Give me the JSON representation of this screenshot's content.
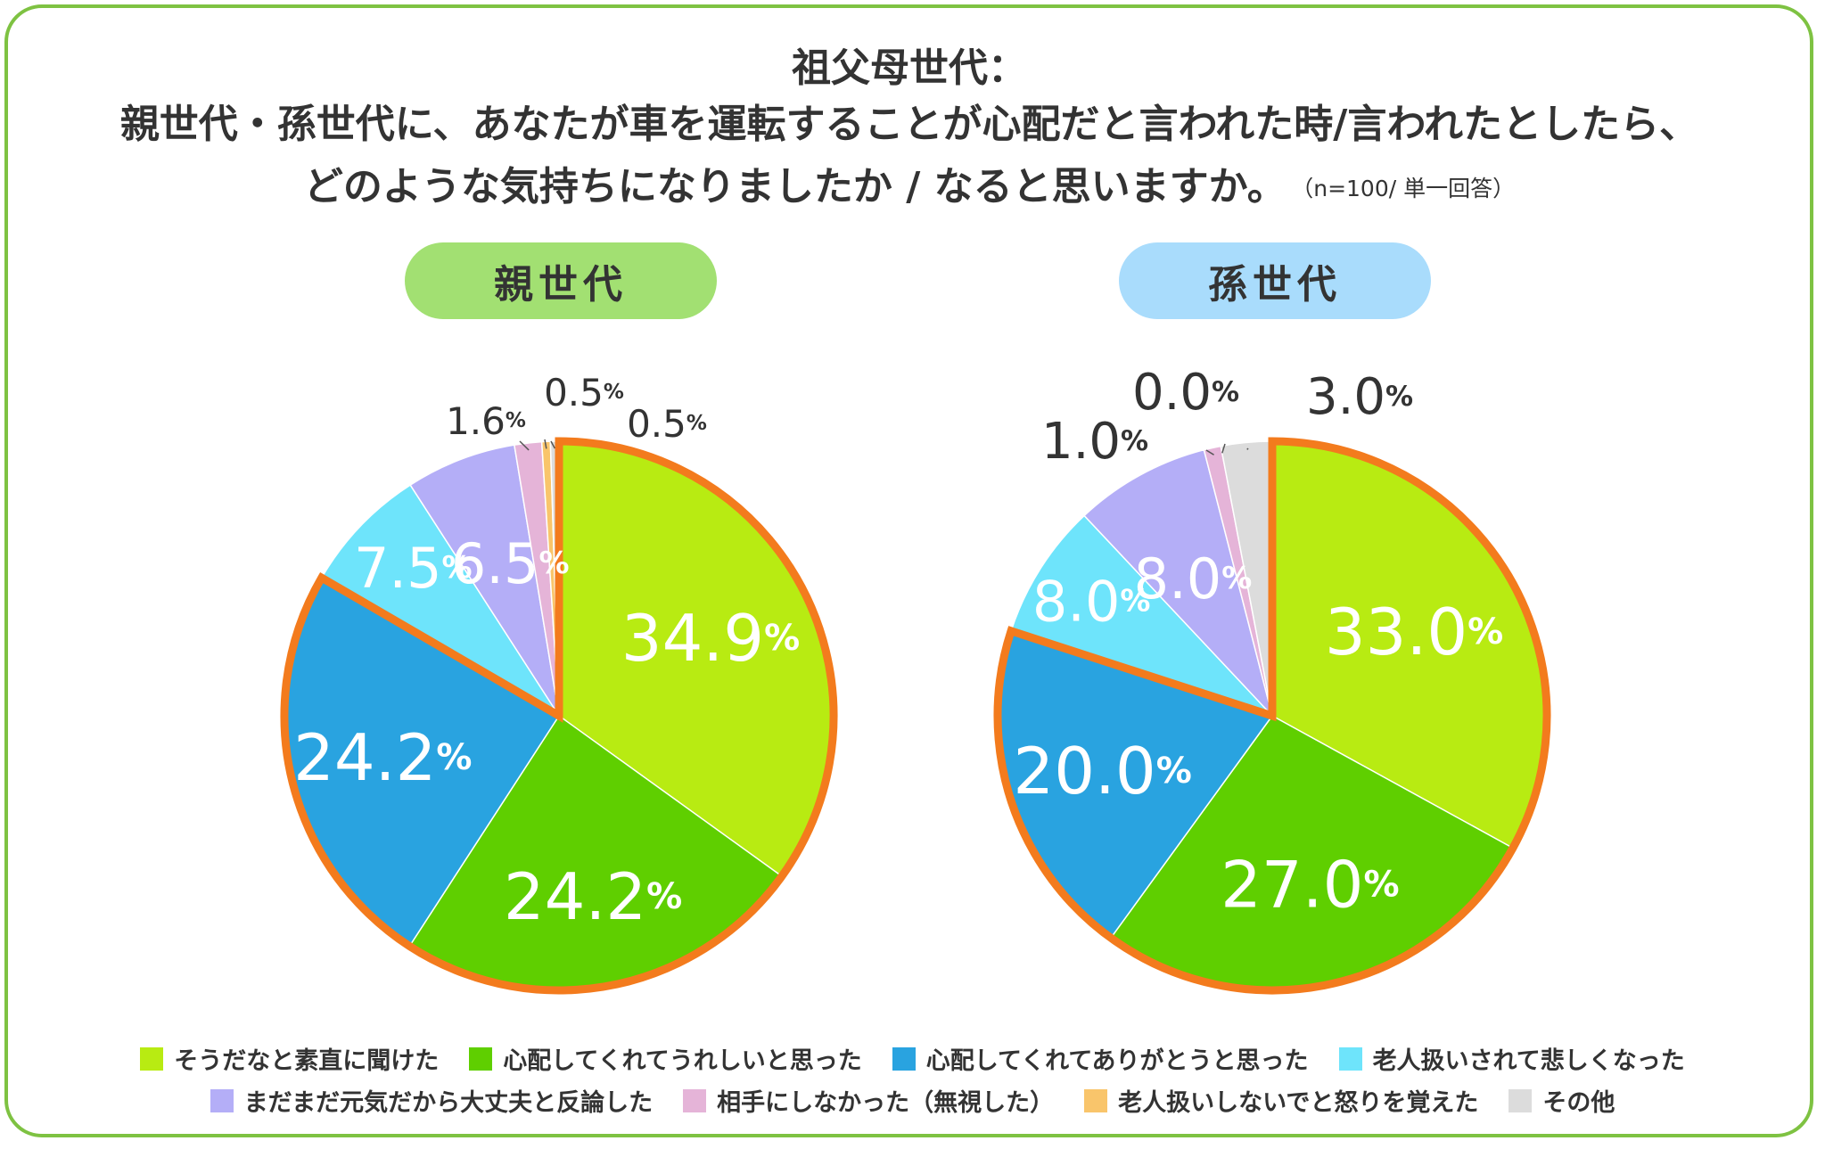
{
  "title": {
    "line1": "祖父母世代：",
    "line2": "親世代・孫世代に、あなたが車を運転することが心配だと言われた時/言われたとしたら、",
    "line3": "どのような気持ちになりましたか / なると思いますか。",
    "note": "（n=100/ 単一回答）"
  },
  "colors": {
    "frame": "#7ec242",
    "highlight": "#f37b1d",
    "label_text": "#333333"
  },
  "chart_data": [
    {
      "type": "pie",
      "title": "親世代",
      "unit": "%",
      "slices": [
        {
          "label": "そうだなと素直に聞けた",
          "value": 34.9,
          "display": "34.9",
          "color": "#b8eb12"
        },
        {
          "label": "心配してくれてうれしいと思った",
          "value": 24.2,
          "display": "24.2",
          "color": "#5fcf00"
        },
        {
          "label": "心配してくれてありがとうと思った",
          "value": 24.2,
          "display": "24.2",
          "color": "#29a3e0"
        },
        {
          "label": "老人扱いされて悲しくなった",
          "value": 7.5,
          "display": "7.5",
          "color": "#6ee4fb"
        },
        {
          "label": "まだまだ元気だから大丈夫と反論した",
          "value": 6.5,
          "display": "6.5",
          "color": "#b4aef7"
        },
        {
          "label": "相手にしなかった（無視した）",
          "value": 1.6,
          "display": "1.6",
          "color": "#e5b4d8"
        },
        {
          "label": "老人扱いしないでと怒りを覚えた",
          "value": 0.5,
          "display": "0.5",
          "color": "#f9c56b"
        },
        {
          "label": "その他",
          "value": 0.5,
          "display": "0.5",
          "color": "#dcdcdc"
        }
      ],
      "highlighted_slices": [
        "そうだなと素直に聞けた",
        "心配してくれてうれしいと思った",
        "心配してくれてありがとうと思った"
      ]
    },
    {
      "type": "pie",
      "title": "孫世代",
      "unit": "%",
      "slices": [
        {
          "label": "そうだなと素直に聞けた",
          "value": 33.0,
          "display": "33.0",
          "color": "#b8eb12"
        },
        {
          "label": "心配してくれてうれしいと思った",
          "value": 27.0,
          "display": "27.0",
          "color": "#5fcf00"
        },
        {
          "label": "心配してくれてありがとうと思った",
          "value": 20.0,
          "display": "20.0",
          "color": "#29a3e0"
        },
        {
          "label": "老人扱いされて悲しくなった",
          "value": 8.0,
          "display": "8.0",
          "color": "#6ee4fb"
        },
        {
          "label": "まだまだ元気だから大丈夫と反論した",
          "value": 8.0,
          "display": "8.0",
          "color": "#b4aef7"
        },
        {
          "label": "相手にしなかった（無視した）",
          "value": 1.0,
          "display": "1.0",
          "color": "#e5b4d8"
        },
        {
          "label": "老人扱いしないでと怒りを覚えた",
          "value": 0.0,
          "display": "0.0",
          "color": "#f9c56b"
        },
        {
          "label": "その他",
          "value": 3.0,
          "display": "3.0",
          "color": "#dcdcdc"
        }
      ],
      "highlighted_slices": [
        "そうだなと素直に聞けた",
        "心配してくれてうれしいと思った",
        "心配してくれてありがとうと思った"
      ]
    }
  ],
  "legend": [
    {
      "label": "そうだなと素直に聞けた",
      "color": "#b8eb12"
    },
    {
      "label": "心配してくれてうれしいと思った",
      "color": "#5fcf00"
    },
    {
      "label": "心配してくれてありがとうと思った",
      "color": "#29a3e0"
    },
    {
      "label": "老人扱いされて悲しくなった",
      "color": "#6ee4fb"
    },
    {
      "label": "まだまだ元気だから大丈夫と反論した",
      "color": "#b4aef7"
    },
    {
      "label": "相手にしなかった（無視した）",
      "color": "#e5b4d8"
    },
    {
      "label": "老人扱いしないでと怒りを覚えた",
      "color": "#f9c56b"
    },
    {
      "label": "その他",
      "color": "#dcdcdc"
    }
  ]
}
